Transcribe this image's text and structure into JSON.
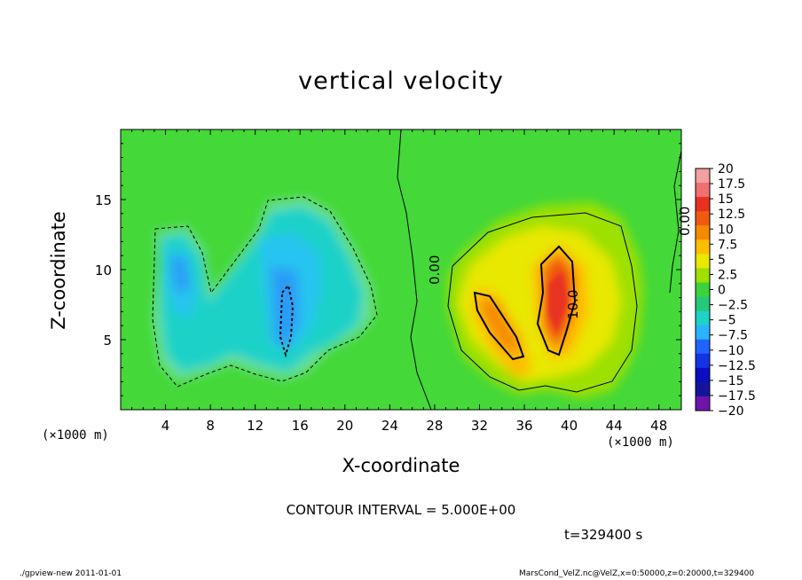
{
  "chart_data": {
    "type": "heatmap",
    "title": "vertical velocity",
    "xlabel": "X-coordinate",
    "ylabel": "Z-coordinate",
    "x_units": "(×1000 m)",
    "y_units": "(×1000 m)",
    "xlim": [
      0,
      50
    ],
    "ylim": [
      0,
      20
    ],
    "x_ticks": [
      4,
      8,
      12,
      16,
      20,
      24,
      28,
      32,
      36,
      40,
      44,
      48
    ],
    "y_ticks": [
      5,
      10,
      15
    ],
    "colorbar": {
      "levels": [
        "20",
        "17.5",
        "15",
        "12.5",
        "10",
        "7.5",
        "5",
        "2.5",
        "0",
        "−2.5",
        "−5",
        "−7.5",
        "−10",
        "−12.5",
        "−15",
        "−17.5",
        "−20"
      ],
      "colors": [
        "#f4a0a0",
        "#f07070",
        "#e83020",
        "#f05a10",
        "#f58a00",
        "#ffbe00",
        "#e8e800",
        "#9ee000",
        "#3cd23c",
        "#24c878",
        "#1ed2c8",
        "#28b4ff",
        "#2064ff",
        "#1432e6",
        "#0c0cc0",
        "#14149b",
        "#6e14aa"
      ]
    },
    "contour_labels": [
      "0.00",
      "10.0",
      "0.00"
    ],
    "contour_interval": "CONTOUR INTERVAL = 5.000E+00",
    "time_label": "t=329400 s"
  },
  "footer": {
    "left": "./gpview-new   2011-01-01",
    "right": "MarsCond_VelZ.nc@VelZ,x=0:50000,z=0:20000,t=329400"
  }
}
